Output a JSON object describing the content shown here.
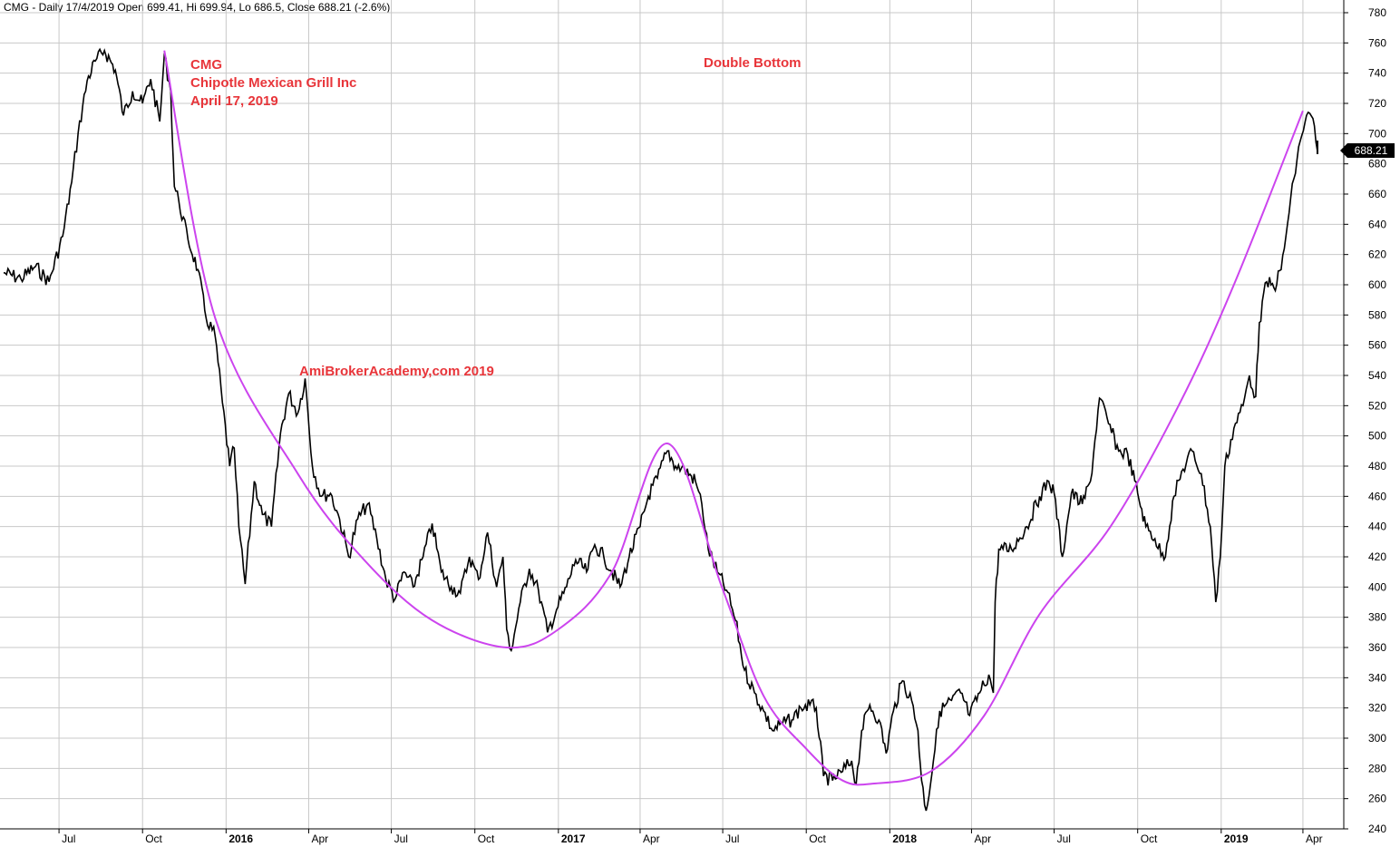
{
  "header": "CMG - Daily 17/4/2019 Open 699.41, Hi 699.94, Lo 686.5, Close 688.21 (-2.6%)",
  "annotations": {
    "ticker": "CMG",
    "company": "Chipotle Mexican Grill Inc",
    "date": "April 17, 2019",
    "pattern": "Double Bottom",
    "watermark": "AmiBrokerAcademy,com  2019"
  },
  "last_price_label": "688.21",
  "colors": {
    "price": "#000000",
    "curve": "#cc44ee",
    "annotation": "#e8353a",
    "grid": "#c8c8c8"
  },
  "chart_data": {
    "type": "line",
    "title": "CMG - Daily 17/4/2019 Open 699.41, Hi 699.94, Lo 686.5, Close 688.21 (-2.6%)",
    "xlabel": "",
    "ylabel": "",
    "ylim": [
      240,
      780
    ],
    "y_ticks": [
      240,
      260,
      280,
      300,
      320,
      340,
      360,
      380,
      400,
      420,
      440,
      460,
      480,
      500,
      520,
      540,
      560,
      580,
      600,
      620,
      640,
      660,
      680,
      700,
      720,
      740,
      760,
      780
    ],
    "x_tick_labels": [
      "Jul",
      "Oct",
      "2016",
      "Apr",
      "Jul",
      "Oct",
      "2017",
      "Apr",
      "Jul",
      "Oct",
      "2018",
      "Apr",
      "Jul",
      "Oct",
      "2019",
      "Apr"
    ],
    "x_tick_bold": [
      false,
      false,
      true,
      false,
      false,
      false,
      true,
      false,
      false,
      false,
      true,
      false,
      false,
      false,
      true,
      false
    ],
    "grid": true,
    "series": [
      {
        "values": [
          [
            "2015-05-01",
            608
          ],
          [
            "2015-05-20",
            604
          ],
          [
            "2015-06-05",
            612
          ],
          [
            "2015-06-20",
            602
          ],
          [
            "2015-07-05",
            632
          ],
          [
            "2015-07-15",
            668
          ],
          [
            "2015-07-22",
            700
          ],
          [
            "2015-08-01",
            735
          ],
          [
            "2015-08-10",
            748
          ],
          [
            "2015-08-20",
            755
          ],
          [
            "2015-09-01",
            742
          ],
          [
            "2015-09-10",
            712
          ],
          [
            "2015-09-20",
            728
          ],
          [
            "2015-10-01",
            720
          ],
          [
            "2015-10-10",
            736
          ],
          [
            "2015-10-20",
            708
          ],
          [
            "2015-10-25",
            752
          ],
          [
            "2015-11-01",
            728
          ],
          [
            "2015-11-05",
            665
          ],
          [
            "2015-11-10",
            655
          ],
          [
            "2015-11-20",
            630
          ],
          [
            "2015-12-01",
            610
          ],
          [
            "2015-12-10",
            578
          ],
          [
            "2015-12-20",
            566
          ],
          [
            "2015-12-28",
            522
          ],
          [
            "2016-01-05",
            480
          ],
          [
            "2016-01-10",
            492
          ],
          [
            "2016-01-15",
            440
          ],
          [
            "2016-01-22",
            402
          ],
          [
            "2016-02-01",
            470
          ],
          [
            "2016-02-10",
            448
          ],
          [
            "2016-02-20",
            440
          ],
          [
            "2016-03-01",
            502
          ],
          [
            "2016-03-10",
            528
          ],
          [
            "2016-03-20",
            515
          ],
          [
            "2016-03-28",
            538
          ],
          [
            "2016-04-05",
            480
          ],
          [
            "2016-04-15",
            460
          ],
          [
            "2016-04-25",
            462
          ],
          [
            "2016-05-05",
            445
          ],
          [
            "2016-05-15",
            420
          ],
          [
            "2016-05-25",
            445
          ],
          [
            "2016-06-05",
            455
          ],
          [
            "2016-06-15",
            432
          ],
          [
            "2016-06-25",
            405
          ],
          [
            "2016-07-05",
            392
          ],
          [
            "2016-07-15",
            410
          ],
          [
            "2016-07-25",
            400
          ],
          [
            "2016-08-05",
            420
          ],
          [
            "2016-08-15",
            442
          ],
          [
            "2016-08-25",
            410
          ],
          [
            "2016-09-05",
            400
          ],
          [
            "2016-09-15",
            396
          ],
          [
            "2016-09-25",
            420
          ],
          [
            "2016-10-05",
            405
          ],
          [
            "2016-10-15",
            436
          ],
          [
            "2016-10-25",
            400
          ],
          [
            "2016-11-01",
            420
          ],
          [
            "2016-11-05",
            372
          ],
          [
            "2016-11-10",
            358
          ],
          [
            "2016-11-20",
            390
          ],
          [
            "2016-11-30",
            412
          ],
          [
            "2016-12-10",
            398
          ],
          [
            "2016-12-20",
            370
          ],
          [
            "2016-12-30",
            385
          ],
          [
            "2017-01-10",
            400
          ],
          [
            "2017-01-20",
            418
          ],
          [
            "2017-02-01",
            410
          ],
          [
            "2017-02-10",
            428
          ],
          [
            "2017-02-20",
            420
          ],
          [
            "2017-03-01",
            410
          ],
          [
            "2017-03-10",
            400
          ],
          [
            "2017-03-20",
            420
          ],
          [
            "2017-04-01",
            440
          ],
          [
            "2017-04-10",
            460
          ],
          [
            "2017-04-20",
            472
          ],
          [
            "2017-05-01",
            490
          ],
          [
            "2017-05-10",
            480
          ],
          [
            "2017-05-20",
            478
          ],
          [
            "2017-06-01",
            470
          ],
          [
            "2017-06-08",
            455
          ],
          [
            "2017-06-15",
            425
          ],
          [
            "2017-06-25",
            410
          ],
          [
            "2017-07-05",
            398
          ],
          [
            "2017-07-15",
            378
          ],
          [
            "2017-07-25",
            345
          ],
          [
            "2017-08-05",
            330
          ],
          [
            "2017-08-15",
            318
          ],
          [
            "2017-08-25",
            305
          ],
          [
            "2017-09-05",
            310
          ],
          [
            "2017-09-15",
            312
          ],
          [
            "2017-09-25",
            320
          ],
          [
            "2017-10-05",
            322
          ],
          [
            "2017-10-12",
            320
          ],
          [
            "2017-10-20",
            275
          ],
          [
            "2017-10-30",
            272
          ],
          [
            "2017-11-10",
            278
          ],
          [
            "2017-11-20",
            285
          ],
          [
            "2017-11-25",
            270
          ],
          [
            "2017-12-01",
            305
          ],
          [
            "2017-12-10",
            322
          ],
          [
            "2017-12-20",
            312
          ],
          [
            "2017-12-28",
            290
          ],
          [
            "2018-01-05",
            318
          ],
          [
            "2018-01-15",
            338
          ],
          [
            "2018-01-25",
            325
          ],
          [
            "2018-02-01",
            305
          ],
          [
            "2018-02-05",
            272
          ],
          [
            "2018-02-10",
            252
          ],
          [
            "2018-02-18",
            285
          ],
          [
            "2018-02-25",
            318
          ],
          [
            "2018-03-10",
            325
          ],
          [
            "2018-03-20",
            330
          ],
          [
            "2018-03-30",
            315
          ],
          [
            "2018-04-10",
            330
          ],
          [
            "2018-04-20",
            342
          ],
          [
            "2018-04-25",
            330
          ],
          [
            "2018-04-27",
            390
          ],
          [
            "2018-05-01",
            425
          ],
          [
            "2018-05-15",
            425
          ],
          [
            "2018-06-01",
            440
          ],
          [
            "2018-06-15",
            460
          ],
          [
            "2018-06-25",
            470
          ],
          [
            "2018-07-01",
            462
          ],
          [
            "2018-07-10",
            420
          ],
          [
            "2018-07-20",
            462
          ],
          [
            "2018-08-01",
            455
          ],
          [
            "2018-08-10",
            470
          ],
          [
            "2018-08-20",
            525
          ],
          [
            "2018-08-30",
            508
          ],
          [
            "2018-09-10",
            490
          ],
          [
            "2018-09-20",
            488
          ],
          [
            "2018-10-01",
            462
          ],
          [
            "2018-10-10",
            440
          ],
          [
            "2018-10-20",
            432
          ],
          [
            "2018-10-30",
            418
          ],
          [
            "2018-11-10",
            460
          ],
          [
            "2018-11-20",
            478
          ],
          [
            "2018-11-30",
            490
          ],
          [
            "2018-12-10",
            475
          ],
          [
            "2018-12-20",
            440
          ],
          [
            "2018-12-26",
            390
          ],
          [
            "2018-12-31",
            420
          ],
          [
            "2019-01-05",
            480
          ],
          [
            "2019-01-15",
            505
          ],
          [
            "2019-01-25",
            520
          ],
          [
            "2019-02-01",
            540
          ],
          [
            "2019-02-08",
            526
          ],
          [
            "2019-02-12",
            575
          ],
          [
            "2019-02-20",
            602
          ],
          [
            "2019-02-28",
            598
          ],
          [
            "2019-03-08",
            610
          ],
          [
            "2019-03-15",
            640
          ],
          [
            "2019-03-22",
            670
          ],
          [
            "2019-03-29",
            695
          ],
          [
            "2019-04-05",
            712
          ],
          [
            "2019-04-12",
            710
          ],
          [
            "2019-04-17",
            688.21
          ]
        ]
      },
      {
        "values": [
          [
            "2015-10-25",
            755
          ],
          [
            "2015-12-20",
            578
          ],
          [
            "2016-03-20",
            475
          ],
          [
            "2016-06-01",
            418
          ],
          [
            "2016-08-15",
            378
          ],
          [
            "2016-11-05",
            360
          ],
          [
            "2017-01-01",
            372
          ],
          [
            "2017-03-01",
            410
          ],
          [
            "2017-05-01",
            495
          ],
          [
            "2017-06-30",
            400
          ],
          [
            "2017-08-15",
            328
          ],
          [
            "2017-10-01",
            293
          ],
          [
            "2017-11-10",
            272
          ],
          [
            "2017-12-15",
            270
          ],
          [
            "2018-02-15",
            278
          ],
          [
            "2018-04-15",
            315
          ],
          [
            "2018-06-15",
            382
          ],
          [
            "2018-09-01",
            440
          ],
          [
            "2018-11-15",
            520
          ],
          [
            "2019-01-15",
            600
          ],
          [
            "2019-04-01",
            715
          ]
        ]
      }
    ]
  }
}
